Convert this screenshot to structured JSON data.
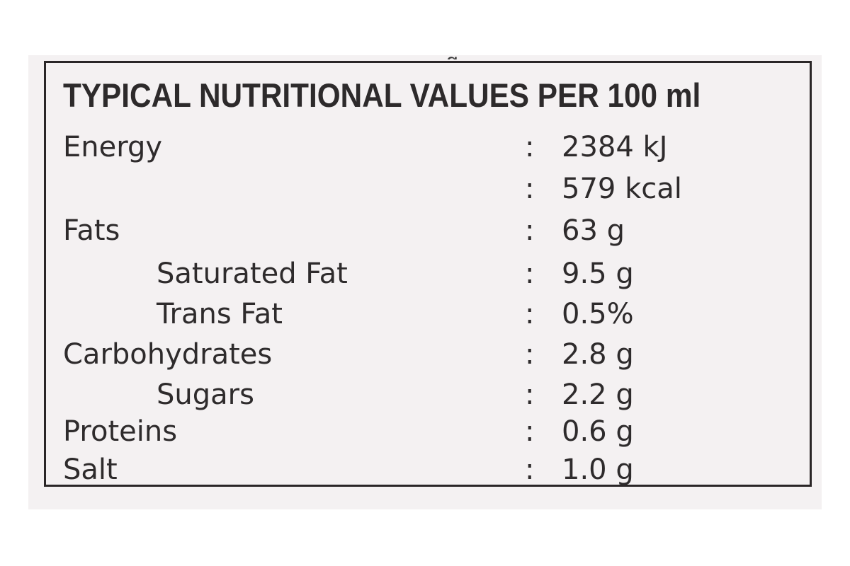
{
  "table": {
    "title": "TYPICAL NUTRITIONAL VALUES PER 100 ml",
    "separator": ":",
    "rows": [
      {
        "label": "Energy",
        "value": "2384 kJ"
      },
      {
        "label": "",
        "value": "579 kcal"
      },
      {
        "label": "Fats",
        "value": "63 g"
      },
      {
        "label": "Saturated Fat",
        "value": "9.5 g"
      },
      {
        "label": "Trans Fat",
        "value": "0.5%"
      },
      {
        "label": "Carbohydrates",
        "value": "2.8 g"
      },
      {
        "label": "Sugars",
        "value": "2.2 g"
      },
      {
        "label": "Proteins",
        "value": "0.6 g"
      },
      {
        "label": "Salt",
        "value": "1.0 g"
      }
    ]
  },
  "colors": {
    "background": "#f4f1f2",
    "text": "#2e2b2c",
    "border": "#2a2627"
  }
}
